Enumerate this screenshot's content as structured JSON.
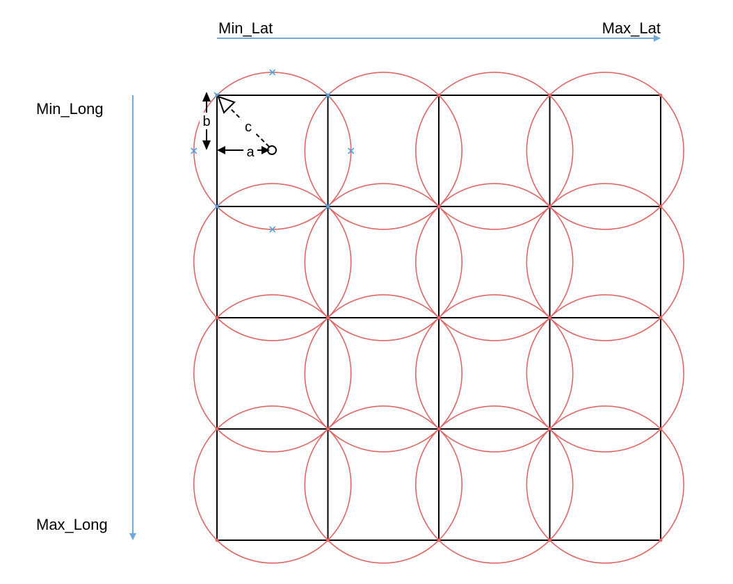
{
  "axes": {
    "top": {
      "start_label": "Min_Lat",
      "end_label": "Max_Lat"
    },
    "left": {
      "start_label": "Min_Long",
      "end_label": "Max_Long"
    }
  },
  "grid": {
    "rows": 4,
    "cols": 4
  },
  "dimensions": {
    "a": "a",
    "b": "b",
    "c": "c"
  },
  "colors": {
    "axis": "#6fa8dc",
    "grid": "#000000",
    "circle": "#e06666",
    "marker": "#4aa3df",
    "dimension": "#000000"
  }
}
